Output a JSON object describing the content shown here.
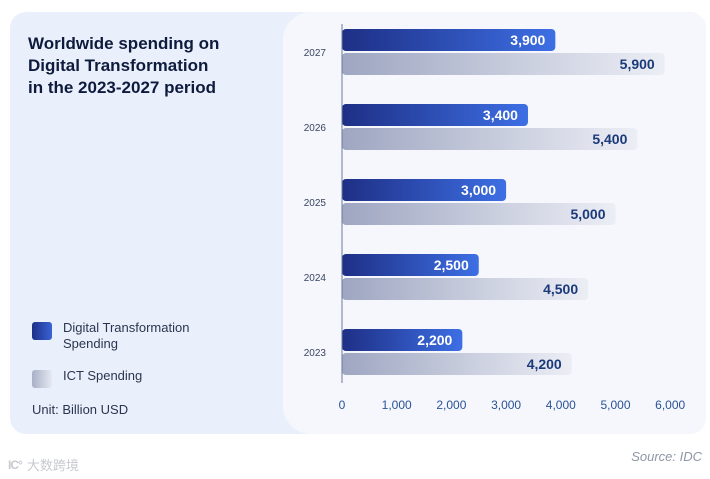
{
  "chart_data": {
    "type": "bar",
    "orientation": "horizontal",
    "title": "Worldwide spending on\nDigital Transformation\nin the 2023-2027 period",
    "categories": [
      "2027",
      "2026",
      "2025",
      "2024",
      "2023"
    ],
    "series": [
      {
        "name": "Digital Transformation\nSpending",
        "values": [
          3900,
          3400,
          3000,
          2500,
          2200
        ],
        "value_labels": [
          "3,900",
          "3,400",
          "3,000",
          "2,500",
          "2,200"
        ],
        "color": "#2f55c9"
      },
      {
        "name": "ICT Spending",
        "values": [
          5900,
          5400,
          5000,
          4500,
          4200
        ],
        "value_labels": [
          "5,900",
          "5,400",
          "5,000",
          "4,500",
          "4,200"
        ],
        "color": "#b9bfd3"
      }
    ],
    "xlim": [
      0,
      6000
    ],
    "xticks": [
      0,
      1000,
      2000,
      3000,
      4000,
      5000,
      6000
    ],
    "xtick_labels": [
      "0",
      "1,000",
      "2,000",
      "3,000",
      "4,000",
      "5,000",
      "6,000"
    ],
    "unit": "Unit: Billion USD",
    "source": "Source: IDC"
  },
  "watermark": {
    "mark": "IC°",
    "text": "大数跨境"
  }
}
